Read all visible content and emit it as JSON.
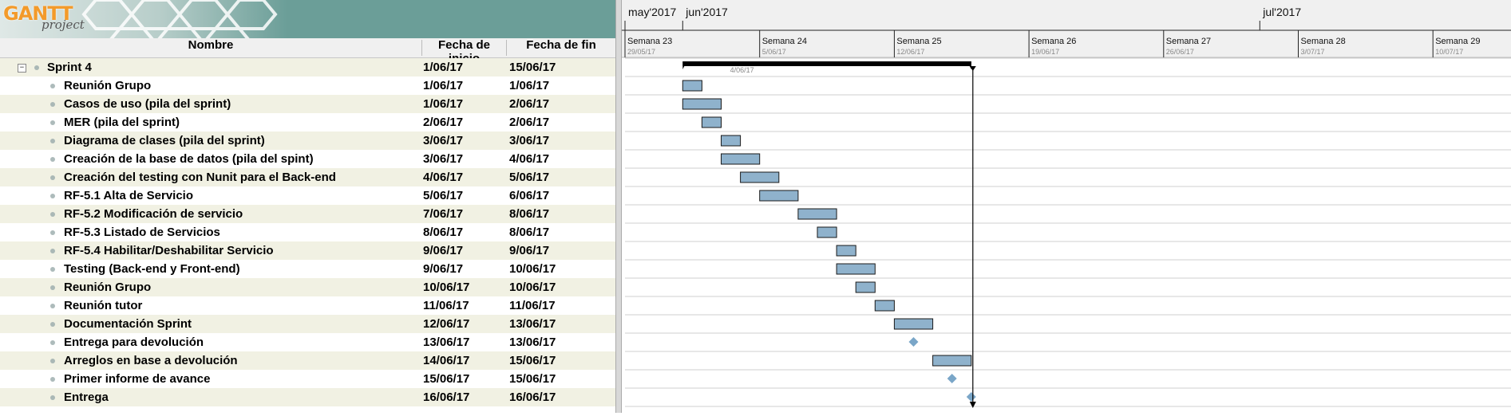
{
  "logo": {
    "brand": "GANTT",
    "sub": "project"
  },
  "table": {
    "headers": {
      "name": "Nombre",
      "start": "Fecha de inicio",
      "end": "Fecha de fin"
    },
    "rows": [
      {
        "name": "Sprint 4",
        "start": "1/06/17",
        "end": "15/06/17",
        "type": "summary",
        "toggle": "−"
      },
      {
        "name": "Reunión Grupo",
        "start": "1/06/17",
        "end": "1/06/17",
        "type": "task"
      },
      {
        "name": "Casos de uso (pila del sprint)",
        "start": "1/06/17",
        "end": "2/06/17",
        "type": "task"
      },
      {
        "name": "MER (pila del sprint)",
        "start": "2/06/17",
        "end": "2/06/17",
        "type": "task"
      },
      {
        "name": "Diagrama de clases (pila del sprint)",
        "start": "3/06/17",
        "end": "3/06/17",
        "type": "task"
      },
      {
        "name": "Creación de la base de datos (pila del spint)",
        "start": "3/06/17",
        "end": "4/06/17",
        "type": "task"
      },
      {
        "name": "Creación del testing con Nunit para el Back-end",
        "start": "4/06/17",
        "end": "5/06/17",
        "type": "task"
      },
      {
        "name": "RF-5.1 Alta de Servicio",
        "start": "5/06/17",
        "end": "6/06/17",
        "type": "task"
      },
      {
        "name": "RF-5.2 Modificación de servicio",
        "start": "7/06/17",
        "end": "8/06/17",
        "type": "task"
      },
      {
        "name": "RF-5.3 Listado de Servicios",
        "start": "8/06/17",
        "end": "8/06/17",
        "type": "task"
      },
      {
        "name": "RF-5.4 Habilitar/Deshabilitar Servicio",
        "start": "9/06/17",
        "end": "9/06/17",
        "type": "task"
      },
      {
        "name": "Testing (Back-end y Front-end)",
        "start": "9/06/17",
        "end": "10/06/17",
        "type": "task"
      },
      {
        "name": "Reunión Grupo",
        "start": "10/06/17",
        "end": "10/06/17",
        "type": "task"
      },
      {
        "name": "Reunión tutor",
        "start": "11/06/17",
        "end": "11/06/17",
        "type": "task"
      },
      {
        "name": "Documentación Sprint",
        "start": "12/06/17",
        "end": "13/06/17",
        "type": "task"
      },
      {
        "name": "Entrega para devolución",
        "start": "13/06/17",
        "end": "13/06/17",
        "type": "milestone"
      },
      {
        "name": "Arreglos en base a devolución",
        "start": "14/06/17",
        "end": "15/06/17",
        "type": "task"
      },
      {
        "name": "Primer informe de avance",
        "start": "15/06/17",
        "end": "15/06/17",
        "type": "milestone"
      },
      {
        "name": "Entrega",
        "start": "16/06/17",
        "end": "16/06/17",
        "type": "milestone"
      }
    ]
  },
  "timeline": {
    "months": [
      {
        "label": "may'2017",
        "day": 0
      },
      {
        "label": "jun'2017",
        "day": 3
      },
      {
        "label": "jul'2017",
        "day": 33
      }
    ],
    "weeks": [
      {
        "label": "Semana 23",
        "date": "29/05/17",
        "day": 0
      },
      {
        "label": "Semana 24",
        "date": "5/06/17",
        "day": 7
      },
      {
        "label": "Semana 25",
        "date": "12/06/17",
        "day": 14
      },
      {
        "label": "Semana 26",
        "date": "19/06/17",
        "day": 21
      },
      {
        "label": "Semana 27",
        "date": "26/06/17",
        "day": 28
      },
      {
        "label": "Semana 28",
        "date": "3/07/17",
        "day": 35
      },
      {
        "label": "Semana 29",
        "date": "10/07/17",
        "day": 42
      }
    ],
    "summary_label": "4/06/17",
    "bars": [
      {
        "row": 0,
        "start": 3,
        "end": 18,
        "kind": "summary"
      },
      {
        "row": 1,
        "start": 3,
        "end": 4,
        "kind": "task"
      },
      {
        "row": 2,
        "start": 3,
        "end": 5,
        "kind": "task"
      },
      {
        "row": 3,
        "start": 4,
        "end": 5,
        "kind": "task"
      },
      {
        "row": 4,
        "start": 5,
        "end": 6,
        "kind": "task"
      },
      {
        "row": 5,
        "start": 5,
        "end": 7,
        "kind": "task"
      },
      {
        "row": 6,
        "start": 6,
        "end": 8,
        "kind": "task"
      },
      {
        "row": 7,
        "start": 7,
        "end": 9,
        "kind": "task"
      },
      {
        "row": 8,
        "start": 9,
        "end": 11,
        "kind": "task"
      },
      {
        "row": 9,
        "start": 10,
        "end": 11,
        "kind": "task"
      },
      {
        "row": 10,
        "start": 11,
        "end": 12,
        "kind": "task"
      },
      {
        "row": 11,
        "start": 11,
        "end": 13,
        "kind": "task"
      },
      {
        "row": 12,
        "start": 12,
        "end": 13,
        "kind": "task"
      },
      {
        "row": 13,
        "start": 13,
        "end": 14,
        "kind": "task"
      },
      {
        "row": 14,
        "start": 14,
        "end": 16,
        "kind": "task"
      },
      {
        "row": 15,
        "start": 15,
        "end": 15,
        "kind": "milestone"
      },
      {
        "row": 16,
        "start": 16,
        "end": 18,
        "kind": "task"
      },
      {
        "row": 17,
        "start": 17,
        "end": 17,
        "kind": "milestone"
      },
      {
        "row": 18,
        "start": 18,
        "end": 18,
        "kind": "milestone"
      }
    ],
    "deadline_day": 18
  },
  "colors": {
    "bar_fill": "#8fb2cc",
    "bar_stroke": "#1a1a1a",
    "milestone": "#7aa6c8",
    "row_alt": "#f1f1e3",
    "logo_bg": "#6b9e98"
  }
}
